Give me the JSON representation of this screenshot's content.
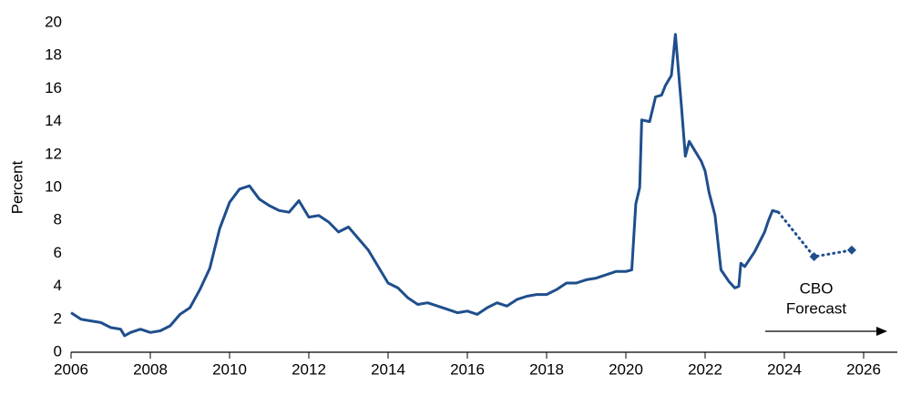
{
  "chart_data": {
    "type": "line",
    "y_label": "Percent",
    "annotation": [
      "CBO",
      "Forecast"
    ],
    "xlim": [
      2006,
      2026
    ],
    "xticks": [
      2006,
      2008,
      2010,
      2012,
      2014,
      2016,
      2018,
      2020,
      2022,
      2024,
      2026
    ],
    "ylim": [
      0,
      20
    ],
    "yticks": [
      0,
      2,
      4,
      6,
      8,
      10,
      12,
      14,
      16,
      18,
      20
    ],
    "grid": false,
    "series": [
      {
        "color": "#1f4e8c",
        "x": [
          2006.0,
          2006.25,
          2006.5,
          2006.75,
          2007.0,
          2007.25,
          2007.35,
          2007.5,
          2007.75,
          2008.0,
          2008.25,
          2008.5,
          2008.75,
          2009.0,
          2009.25,
          2009.5,
          2009.75,
          2010.0,
          2010.25,
          2010.5,
          2010.75,
          2011.0,
          2011.25,
          2011.5,
          2011.75,
          2012.0,
          2012.25,
          2012.5,
          2012.75,
          2013.0,
          2013.25,
          2013.5,
          2013.75,
          2014.0,
          2014.25,
          2014.5,
          2014.75,
          2015.0,
          2015.25,
          2015.5,
          2015.75,
          2016.0,
          2016.25,
          2016.5,
          2016.75,
          2017.0,
          2017.25,
          2017.5,
          2017.75,
          2018.0,
          2018.25,
          2018.5,
          2018.75,
          2019.0,
          2019.25,
          2019.5,
          2019.75,
          2020.0,
          2020.15,
          2020.25,
          2020.35,
          2020.4,
          2020.6,
          2020.75,
          2020.9,
          2021.0,
          2021.15,
          2021.25,
          2021.4,
          2021.5,
          2021.6,
          2021.75,
          2021.9,
          2022.0,
          2022.1,
          2022.25,
          2022.4,
          2022.6,
          2022.75,
          2022.85,
          2022.9,
          2023.0,
          2023.25,
          2023.5,
          2023.6,
          2023.7,
          2023.85
        ],
        "values": [
          2.4,
          2.0,
          1.9,
          1.8,
          1.5,
          1.4,
          1.0,
          1.2,
          1.4,
          1.2,
          1.3,
          1.6,
          2.3,
          2.7,
          3.8,
          5.1,
          7.5,
          9.1,
          9.9,
          10.1,
          9.3,
          8.9,
          8.6,
          8.5,
          9.2,
          8.2,
          8.3,
          7.9,
          7.3,
          7.6,
          6.9,
          6.2,
          5.2,
          4.2,
          3.9,
          3.3,
          2.9,
          3.0,
          2.8,
          2.6,
          2.4,
          2.5,
          2.3,
          2.7,
          3.0,
          2.8,
          3.2,
          3.4,
          3.5,
          3.5,
          3.8,
          4.2,
          4.2,
          4.4,
          4.5,
          4.7,
          4.9,
          4.9,
          5.0,
          9.0,
          10.0,
          14.1,
          14.0,
          15.5,
          15.6,
          16.2,
          16.8,
          19.3,
          15.0,
          11.9,
          12.8,
          12.2,
          11.6,
          11.0,
          9.7,
          8.3,
          5.0,
          4.3,
          3.9,
          4.0,
          5.4,
          5.2,
          6.1,
          7.3,
          8.0,
          8.6,
          8.5
        ]
      },
      {
        "color": "#1f4e8c",
        "dashed": true,
        "marker": "diamond",
        "x": [
          2023.85,
          2024.75,
          2025.7
        ],
        "values": [
          8.5,
          5.8,
          6.2
        ]
      }
    ]
  }
}
